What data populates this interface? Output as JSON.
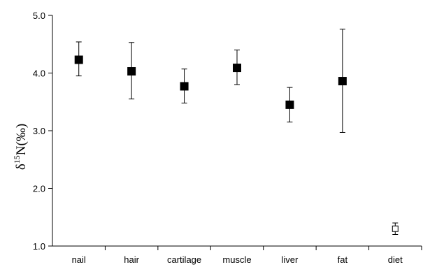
{
  "chart_data": {
    "type": "scatter",
    "title": "",
    "xlabel": "",
    "ylabel": {
      "delta": "δ",
      "superscript": "15",
      "rest": "N(‰)"
    },
    "ylim": [
      1.0,
      5.0
    ],
    "yticks": [
      1.0,
      2.0,
      3.0,
      4.0,
      5.0
    ],
    "ytick_labels": [
      "1.0",
      "2.0",
      "3.0",
      "4.0",
      "5.0"
    ],
    "grid": false,
    "legend": "none",
    "categories": [
      "nail",
      "hair",
      "cartilage",
      "muscle",
      "liver",
      "fat",
      "diet"
    ],
    "series": [
      {
        "values": [
          4.23,
          4.03,
          3.77,
          4.09,
          3.45,
          3.86,
          1.3
        ],
        "lower": [
          3.95,
          3.55,
          3.48,
          3.8,
          3.15,
          2.97,
          1.2
        ],
        "upper": [
          4.54,
          4.53,
          4.07,
          4.4,
          3.75,
          4.76,
          1.4
        ],
        "marker_fill": [
          "#000000",
          "#000000",
          "#000000",
          "#000000",
          "#000000",
          "#000000",
          "#ffffff"
        ],
        "marker_stroke": "#000000"
      }
    ]
  }
}
